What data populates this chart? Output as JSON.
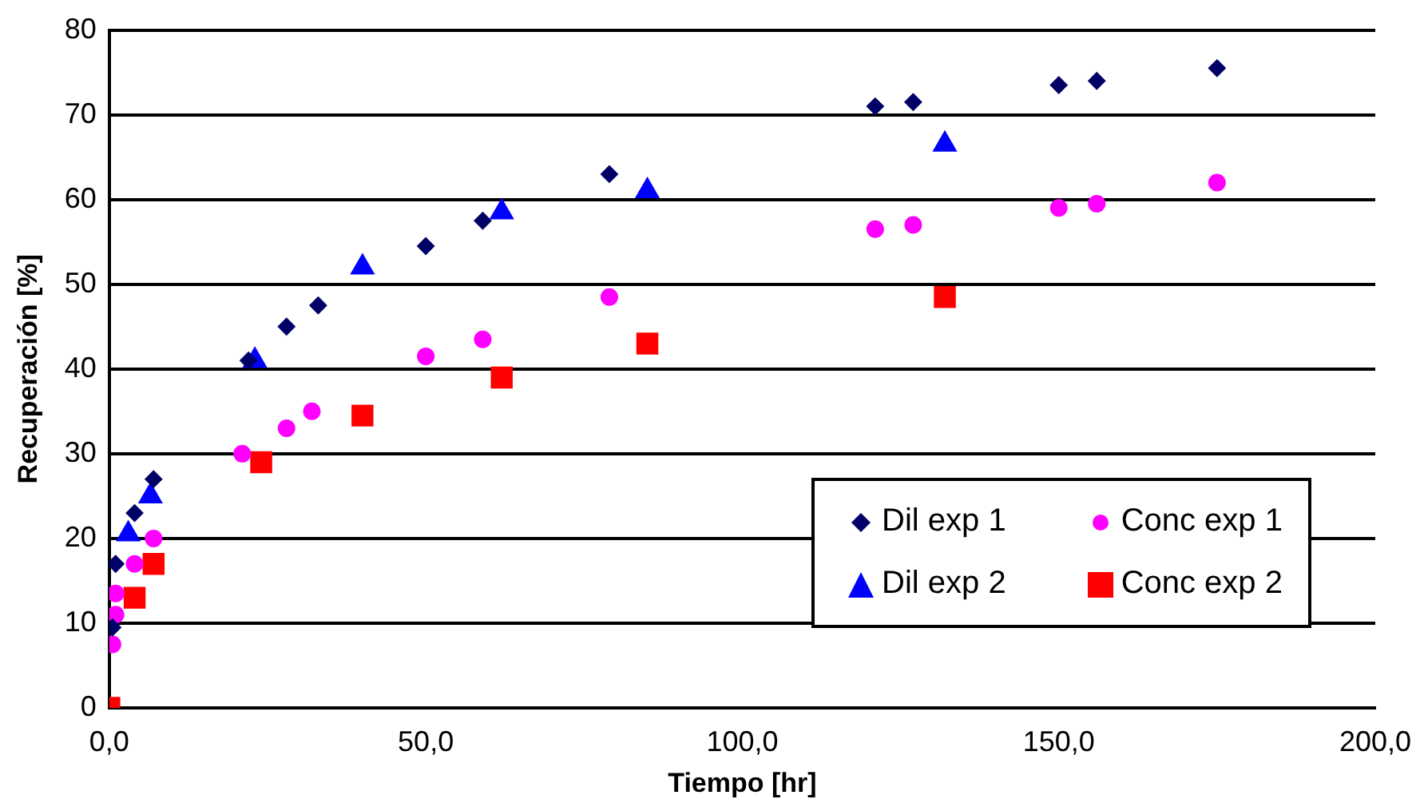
{
  "chart_data": {
    "type": "scatter",
    "xlabel": "Tiempo [hr]",
    "ylabel": "Recuperación [%]",
    "xlim": [
      0,
      200
    ],
    "xticks": [
      {
        "value": 0,
        "label": "0,0"
      },
      {
        "value": 50,
        "label": "50,0"
      },
      {
        "value": 100,
        "label": "100,0"
      },
      {
        "value": 150,
        "label": "150,0"
      },
      {
        "value": 200,
        "label": "200,0"
      }
    ],
    "ylim": [
      0,
      80
    ],
    "yticks": [
      0,
      10,
      20,
      30,
      40,
      50,
      60,
      70,
      80
    ],
    "grid": "y",
    "legend": "bottom right",
    "series": [
      {
        "name": "Dil exp 1",
        "color": "#000066",
        "marker": "diamond",
        "x": [
          0.5,
          1,
          4,
          7,
          22,
          28,
          33,
          50,
          59,
          79,
          121,
          127,
          150,
          156,
          175
        ],
        "values": [
          9.5,
          17,
          23,
          27,
          41,
          45,
          47.5,
          54.5,
          57.5,
          63,
          71,
          71.5,
          73.5,
          74,
          75.5
        ]
      },
      {
        "name": "Conc exp 1",
        "color": "#ff00ff",
        "marker": "circle",
        "x": [
          0.5,
          1,
          1,
          4,
          7,
          21,
          28,
          32,
          50,
          59,
          79,
          121,
          127,
          150,
          156,
          175
        ],
        "values": [
          7.5,
          11,
          13.5,
          17,
          20,
          30,
          33,
          35,
          41.5,
          43.5,
          48.5,
          56.5,
          57,
          59,
          59.5,
          62
        ]
      },
      {
        "name": "Dil exp 2",
        "color": "#0000ff",
        "marker": "triangle",
        "x": [
          3,
          6.5,
          23,
          40,
          62,
          85,
          132
        ],
        "values": [
          20.5,
          25,
          41,
          52,
          58.5,
          61,
          66.5
        ]
      },
      {
        "name": "Conc exp 2",
        "color": "#ff0000",
        "marker": "square",
        "x": [
          0,
          4,
          7,
          24,
          40,
          62,
          85,
          132
        ],
        "values": [
          0,
          13,
          17,
          29,
          34.5,
          39,
          43,
          48.5
        ]
      }
    ]
  }
}
